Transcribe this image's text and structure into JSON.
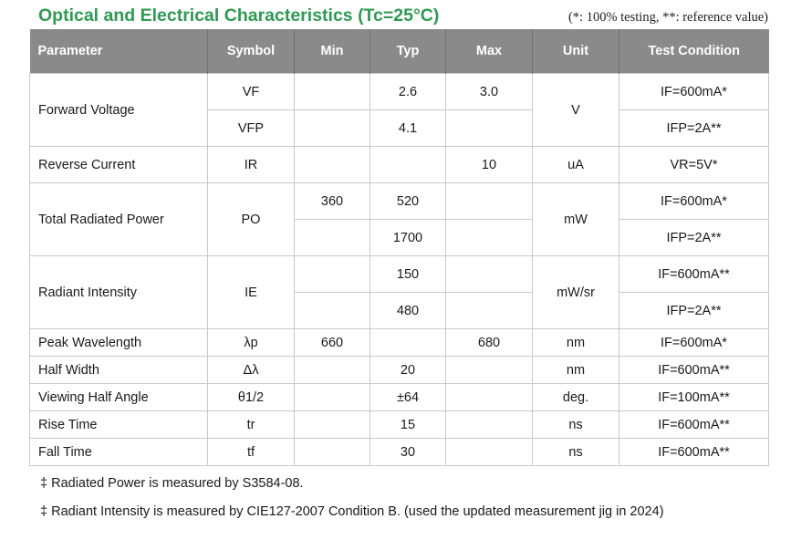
{
  "title": "Optical and Electrical Characteristics (Tc=25°C)",
  "note": "(*: 100% testing, **: reference value)",
  "headers": [
    "Parameter",
    "Symbol",
    "Min",
    "Typ",
    "Max",
    "Unit",
    "Test Condition"
  ],
  "rows": {
    "forward_voltage": {
      "param": "Forward Voltage",
      "unit": "V",
      "sub": [
        {
          "symbol": "VF",
          "min": "",
          "typ": "2.6",
          "max": "3.0",
          "cond": "IF=600mA*"
        },
        {
          "symbol": "VFP",
          "min": "",
          "typ": "4.1",
          "max": "",
          "cond": "IFP=2A**"
        }
      ]
    },
    "reverse_current": {
      "param": "Reverse Current",
      "symbol": "IR",
      "min": "",
      "typ": "",
      "max": "10",
      "unit": "uA",
      "cond": "VR=5V*"
    },
    "total_radiated_power": {
      "param": "Total Radiated Power",
      "symbol": "PO",
      "unit": "mW",
      "sub": [
        {
          "min": "360",
          "typ": "520",
          "max": "",
          "cond": "IF=600mA*"
        },
        {
          "min": "",
          "typ": "1700",
          "max": "",
          "cond": "IFP=2A**"
        }
      ]
    },
    "radiant_intensity": {
      "param": "Radiant Intensity",
      "symbol": "IE",
      "unit": "mW/sr",
      "sub": [
        {
          "min": "",
          "typ": "150",
          "max": "",
          "cond": "IF=600mA**"
        },
        {
          "min": "",
          "typ": "480",
          "max": "",
          "cond": "IFP=2A**"
        }
      ]
    },
    "peak_wavelength": {
      "param": "Peak Wavelength",
      "symbol": "λp",
      "min": "660",
      "typ": "",
      "max": "680",
      "unit": "nm",
      "cond": "IF=600mA*"
    },
    "half_width": {
      "param": "Half Width",
      "symbol": "Δλ",
      "min": "",
      "typ": "20",
      "max": "",
      "unit": "nm",
      "cond": "IF=600mA**"
    },
    "viewing_half_angle": {
      "param": "Viewing Half Angle",
      "symbol": "θ1/2",
      "min": "",
      "typ": "±64",
      "max": "",
      "unit": "deg.",
      "cond": "IF=100mA**"
    },
    "rise_time": {
      "param": "Rise Time",
      "symbol": "tr",
      "min": "",
      "typ": "15",
      "max": "",
      "unit": "ns",
      "cond": "IF=600mA**"
    },
    "fall_time": {
      "param": "Fall Time",
      "symbol": "tf",
      "min": "",
      "typ": "30",
      "max": "",
      "unit": "ns",
      "cond": "IF=600mA**"
    }
  },
  "footnotes": [
    "‡ Radiated Power is measured by S3584-08.",
    "‡ Radiant Intensity is measured by CIE127-2007 Condition B. (used the updated measurement jig in 2024)"
  ]
}
